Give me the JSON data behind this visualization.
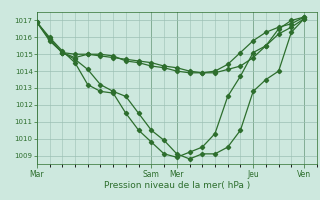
{
  "background_color": "#cde8de",
  "plot_bg_color": "#cde8de",
  "grid_color": "#9bbfb3",
  "line_color": "#2d6e2d",
  "xlabel": "Pression niveau de la mer( hPa )",
  "ylim": [
    1008.5,
    1017.5
  ],
  "yticks": [
    1009,
    1010,
    1011,
    1012,
    1013,
    1014,
    1015,
    1016,
    1017
  ],
  "day_labels": [
    "Mar",
    "Sam",
    "Mer",
    "Jeu",
    "Ven"
  ],
  "day_positions": [
    0,
    54,
    66,
    102,
    126
  ],
  "xlim": [
    0,
    132
  ],
  "series1_x": [
    0,
    6,
    12,
    18,
    24,
    30,
    36,
    42,
    48,
    54,
    60,
    66,
    72,
    78,
    84,
    90,
    96,
    102,
    108,
    114,
    120,
    126
  ],
  "series1_y": [
    1016.9,
    1015.8,
    1015.1,
    1015.0,
    1015.0,
    1014.9,
    1014.8,
    1014.7,
    1014.6,
    1014.5,
    1014.3,
    1014.2,
    1014.0,
    1013.9,
    1013.9,
    1014.1,
    1014.3,
    1014.8,
    1015.5,
    1016.2,
    1016.6,
    1017.1
  ],
  "series2_x": [
    0,
    6,
    12,
    18,
    24,
    30,
    36,
    42,
    48,
    54,
    60,
    66,
    72,
    78,
    84,
    90,
    96,
    102,
    108,
    114,
    120,
    126
  ],
  "series2_y": [
    1016.9,
    1015.9,
    1015.1,
    1014.7,
    1014.1,
    1013.2,
    1012.8,
    1012.5,
    1011.5,
    1010.5,
    1009.9,
    1009.1,
    1008.8,
    1009.1,
    1009.1,
    1009.5,
    1010.5,
    1012.8,
    1013.5,
    1014.0,
    1016.3,
    1017.1
  ],
  "series3_x": [
    0,
    6,
    12,
    18,
    24,
    30,
    36,
    42,
    48,
    54,
    60,
    66,
    72,
    78,
    84,
    90,
    96,
    102,
    108,
    114,
    120,
    126
  ],
  "series3_y": [
    1016.9,
    1016.0,
    1015.2,
    1014.5,
    1013.2,
    1012.8,
    1012.7,
    1011.5,
    1010.5,
    1009.8,
    1009.1,
    1008.9,
    1009.2,
    1009.5,
    1010.3,
    1012.5,
    1013.7,
    1015.1,
    1015.5,
    1016.5,
    1017.0,
    1017.2
  ],
  "series4_x": [
    0,
    6,
    12,
    18,
    24,
    30,
    36,
    42,
    48,
    54,
    60,
    66,
    72,
    78,
    84,
    90,
    96,
    102,
    108,
    114,
    120,
    126
  ],
  "series4_y": [
    1016.9,
    1015.9,
    1015.1,
    1014.8,
    1015.0,
    1015.0,
    1014.9,
    1014.6,
    1014.5,
    1014.3,
    1014.2,
    1014.0,
    1013.9,
    1013.9,
    1014.0,
    1014.4,
    1015.1,
    1015.8,
    1016.3,
    1016.6,
    1016.8,
    1017.2
  ]
}
